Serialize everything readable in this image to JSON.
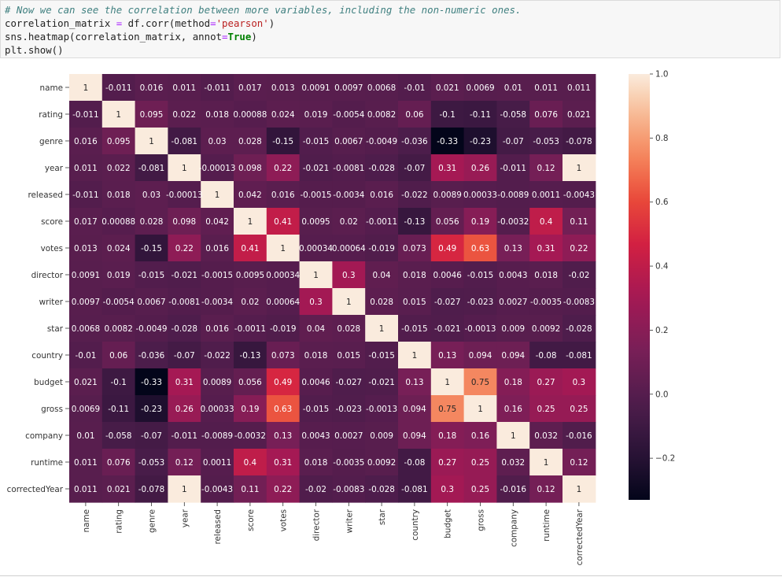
{
  "code": {
    "comment": "# Now we can see the correlation between more variables, including the non-numeric ones.",
    "line2": {
      "target": "correlation_matrix ",
      "op": "=",
      "call": " df.corr(method",
      "op2": "=",
      "str": "'pearson'",
      "close": ")"
    },
    "line3": {
      "call": "sns.heatmap(correlation_matrix, annot",
      "op": "=",
      "kw": "True",
      "close": ")"
    },
    "line4": "plt.show()"
  },
  "chart_data": {
    "type": "heatmap",
    "labels": [
      "name",
      "rating",
      "genre",
      "year",
      "released",
      "score",
      "votes",
      "director",
      "writer",
      "star",
      "country",
      "budget",
      "gross",
      "company",
      "runtime",
      "correctedYear"
    ],
    "values": [
      [
        1,
        -0.011,
        0.016,
        0.011,
        -0.011,
        0.017,
        0.013,
        0.0091,
        0.0097,
        0.0068,
        -0.01,
        0.021,
        0.0069,
        0.01,
        0.011,
        0.011
      ],
      [
        -0.011,
        1,
        0.095,
        0.022,
        0.018,
        0.00088,
        0.024,
        0.019,
        -0.0054,
        0.0082,
        0.06,
        -0.1,
        -0.11,
        -0.058,
        0.076,
        0.021
      ],
      [
        0.016,
        0.095,
        1,
        -0.081,
        0.03,
        0.028,
        -0.15,
        -0.015,
        0.0067,
        -0.0049,
        -0.036,
        -0.33,
        -0.23,
        -0.07,
        -0.053,
        -0.078
      ],
      [
        0.011,
        0.022,
        -0.081,
        1,
        -0.00013,
        0.098,
        0.22,
        -0.021,
        -0.0081,
        -0.028,
        -0.07,
        0.31,
        0.26,
        -0.011,
        0.12,
        1
      ],
      [
        -0.011,
        0.018,
        0.03,
        -0.00013,
        1,
        0.042,
        0.016,
        -0.0015,
        -0.0034,
        0.016,
        -0.022,
        0.0089,
        0.00033,
        -0.0089,
        0.0011,
        -0.0043
      ],
      [
        0.017,
        0.00088,
        0.028,
        0.098,
        0.042,
        1,
        0.41,
        0.0095,
        0.02,
        -0.0011,
        -0.13,
        0.056,
        0.19,
        -0.0032,
        0.4,
        0.11
      ],
      [
        0.013,
        0.024,
        -0.15,
        0.22,
        0.016,
        0.41,
        1,
        0.00034,
        0.00064,
        -0.019,
        0.073,
        0.49,
        0.63,
        0.13,
        0.31,
        0.22
      ],
      [
        0.0091,
        0.019,
        -0.015,
        -0.021,
        -0.0015,
        0.0095,
        0.00034,
        1,
        0.3,
        0.04,
        0.018,
        0.0046,
        -0.015,
        0.0043,
        0.018,
        -0.02
      ],
      [
        0.0097,
        -0.0054,
        0.0067,
        -0.0081,
        -0.0034,
        0.02,
        0.00064,
        0.3,
        1,
        0.028,
        0.015,
        -0.027,
        -0.023,
        0.0027,
        -0.0035,
        -0.0083
      ],
      [
        0.0068,
        0.0082,
        -0.0049,
        -0.028,
        0.016,
        -0.0011,
        -0.019,
        0.04,
        0.028,
        1,
        -0.015,
        -0.021,
        -0.0013,
        0.009,
        0.0092,
        -0.028
      ],
      [
        -0.01,
        0.06,
        -0.036,
        -0.07,
        -0.022,
        -0.13,
        0.073,
        0.018,
        0.015,
        -0.015,
        1,
        0.13,
        0.094,
        0.094,
        -0.08,
        -0.081
      ],
      [
        0.021,
        -0.1,
        -0.33,
        0.31,
        0.0089,
        0.056,
        0.49,
        0.0046,
        -0.027,
        -0.021,
        0.13,
        1,
        0.75,
        0.18,
        0.27,
        0.3
      ],
      [
        0.0069,
        -0.11,
        -0.23,
        0.26,
        0.00033,
        0.19,
        0.63,
        -0.015,
        -0.023,
        -0.0013,
        0.094,
        0.75,
        1,
        0.16,
        0.25,
        0.25
      ],
      [
        0.01,
        -0.058,
        -0.07,
        -0.011,
        -0.0089,
        -0.0032,
        0.13,
        0.0043,
        0.0027,
        0.009,
        0.094,
        0.18,
        0.16,
        1,
        0.032,
        -0.016
      ],
      [
        0.011,
        0.076,
        -0.053,
        0.12,
        0.0011,
        0.4,
        0.31,
        0.018,
        -0.0035,
        0.0092,
        -0.08,
        0.27,
        0.25,
        0.032,
        1,
        0.12
      ],
      [
        0.011,
        0.021,
        -0.078,
        1,
        -0.0043,
        0.11,
        0.22,
        -0.02,
        -0.0083,
        -0.028,
        -0.081,
        0.3,
        0.25,
        -0.016,
        0.12,
        1
      ]
    ],
    "annotations": [
      [
        "1",
        "-0.011",
        "0.016",
        "0.011",
        "-0.011",
        "0.017",
        "0.013",
        "0.0091",
        "0.0097",
        "0.0068",
        "-0.01",
        "0.021",
        "0.0069",
        "0.01",
        "0.011",
        "0.011"
      ],
      [
        "-0.011",
        "1",
        "0.095",
        "0.022",
        "0.018",
        "0.00088",
        "0.024",
        "0.019",
        "-0.0054",
        "0.0082",
        "0.06",
        "-0.1",
        "-0.11",
        "-0.058",
        "0.076",
        "0.021"
      ],
      [
        "0.016",
        "0.095",
        "1",
        "-0.081",
        "0.03",
        "0.028",
        "-0.15",
        "-0.015",
        "0.0067",
        "-0.0049",
        "-0.036",
        "-0.33",
        "-0.23",
        "-0.07",
        "-0.053",
        "-0.078"
      ],
      [
        "0.011",
        "0.022",
        "-0.081",
        "1",
        "-0.00013",
        "0.098",
        "0.22",
        "-0.021",
        "-0.0081",
        "-0.028",
        "-0.07",
        "0.31",
        "0.26",
        "-0.011",
        "0.12",
        "1"
      ],
      [
        "-0.011",
        "0.018",
        "0.03",
        "-0.00013",
        "1",
        "0.042",
        "0.016",
        "-0.0015",
        "-0.0034",
        "0.016",
        "-0.022",
        "0.0089",
        "0.00033",
        "-0.0089",
        "0.0011",
        "-0.0043"
      ],
      [
        "0.017",
        "0.00088",
        "0.028",
        "0.098",
        "0.042",
        "1",
        "0.41",
        "0.0095",
        "0.02",
        "-0.0011",
        "-0.13",
        "0.056",
        "0.19",
        "-0.0032",
        "0.4",
        "0.11"
      ],
      [
        "0.013",
        "0.024",
        "-0.15",
        "0.22",
        "0.016",
        "0.41",
        "1",
        "0.00034",
        "0.00064",
        "-0.019",
        "0.073",
        "0.49",
        "0.63",
        "0.13",
        "0.31",
        "0.22"
      ],
      [
        "0.0091",
        "0.019",
        "-0.015",
        "-0.021",
        "-0.0015",
        "0.0095",
        "0.00034",
        "1",
        "0.3",
        "0.04",
        "0.018",
        "0.0046",
        "-0.015",
        "0.0043",
        "0.018",
        "-0.02"
      ],
      [
        "0.0097",
        "-0.0054",
        "0.0067",
        "-0.0081",
        "-0.0034",
        "0.02",
        "0.00064",
        "0.3",
        "1",
        "0.028",
        "0.015",
        "-0.027",
        "-0.023",
        "0.0027",
        "-0.0035",
        "-0.0083"
      ],
      [
        "0.0068",
        "0.0082",
        "-0.0049",
        "-0.028",
        "0.016",
        "-0.0011",
        "-0.019",
        "0.04",
        "0.028",
        "1",
        "-0.015",
        "-0.021",
        "-0.0013",
        "0.009",
        "0.0092",
        "-0.028"
      ],
      [
        "-0.01",
        "0.06",
        "-0.036",
        "-0.07",
        "-0.022",
        "-0.13",
        "0.073",
        "0.018",
        "0.015",
        "-0.015",
        "1",
        "0.13",
        "0.094",
        "0.094",
        "-0.08",
        "-0.081"
      ],
      [
        "0.021",
        "-0.1",
        "-0.33",
        "0.31",
        "0.0089",
        "0.056",
        "0.49",
        "0.0046",
        "-0.027",
        "-0.021",
        "0.13",
        "1",
        "0.75",
        "0.18",
        "0.27",
        "0.3"
      ],
      [
        "0.0069",
        "-0.11",
        "-0.23",
        "0.26",
        "0.00033",
        "0.19",
        "0.63",
        "-0.015",
        "-0.023",
        "-0.0013",
        "0.094",
        "0.75",
        "1",
        "0.16",
        "0.25",
        "0.25"
      ],
      [
        "0.01",
        "-0.058",
        "-0.07",
        "-0.011",
        "-0.0089",
        "-0.0032",
        "0.13",
        "0.0043",
        "0.0027",
        "0.009",
        "0.094",
        "0.18",
        "0.16",
        "1",
        "0.032",
        "-0.016"
      ],
      [
        "0.011",
        "0.076",
        "-0.053",
        "0.12",
        "0.0011",
        "0.4",
        "0.31",
        "0.018",
        "-0.0035",
        "0.0092",
        "-0.08",
        "0.27",
        "0.25",
        "0.032",
        "1",
        "0.12"
      ],
      [
        "0.011",
        "0.021",
        "-0.078",
        "1",
        "-0.0043",
        "0.11",
        "0.22",
        "-0.02",
        "-0.0083",
        "-0.028",
        "-0.081",
        "0.3",
        "0.25",
        "-0.016",
        "0.12",
        "1"
      ]
    ],
    "colorbar": {
      "min": -0.33,
      "max": 1,
      "ticks": [
        1.0,
        0.8,
        0.6,
        0.4,
        0.2,
        0.0,
        -0.2
      ],
      "tick_labels": [
        "1.0",
        "0.8",
        "0.6",
        "0.4",
        "0.2",
        "0.0",
        "−0.2"
      ]
    },
    "colormap": "rocket",
    "title": "",
    "xlabel": "",
    "ylabel": ""
  }
}
